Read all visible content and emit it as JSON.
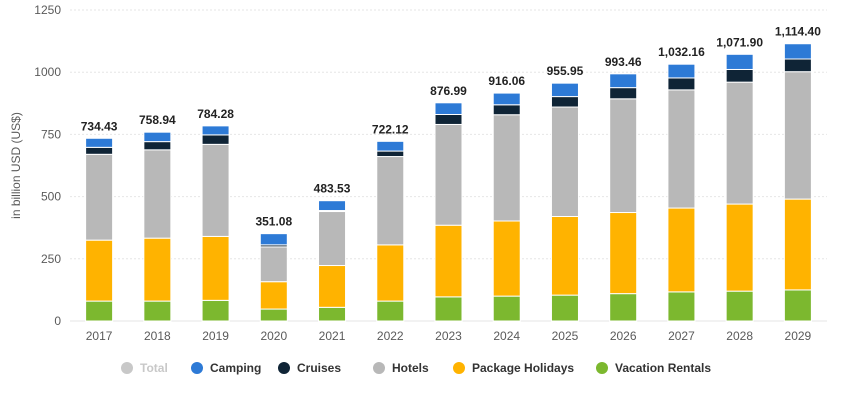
{
  "chart_data": {
    "type": "bar",
    "stacked": true,
    "ylabel": "in billion USD (US$)",
    "ylim": [
      0,
      1250
    ],
    "yticks": [
      "0",
      "250",
      "500",
      "750",
      "1000",
      "1250"
    ],
    "categories": [
      "2017",
      "2018",
      "2019",
      "2020",
      "2021",
      "2022",
      "2023",
      "2024",
      "2025",
      "2026",
      "2027",
      "2028",
      "2029"
    ],
    "totals": [
      734.43,
      758.94,
      784.28,
      351.08,
      483.53,
      722.12,
      876.99,
      916.06,
      955.95,
      993.46,
      1032.16,
      1071.9,
      1114.4
    ],
    "total_labels": [
      "734.43",
      "758.94",
      "784.28",
      "351.08",
      "483.53",
      "722.12",
      "876.99",
      "916.06",
      "955.95",
      "993.46",
      "1,032.16",
      "1,071.90",
      "1,114.40"
    ],
    "series": [
      {
        "name": "Vacation Rentals",
        "color": "#7cb82f",
        "values": [
          80,
          80,
          83,
          48,
          55,
          80,
          97,
          100,
          104,
          110,
          117,
          120,
          125
        ]
      },
      {
        "name": "Package Holidays",
        "color": "#ffb300",
        "values": [
          245,
          253,
          257,
          110,
          168,
          226,
          288,
          302,
          316,
          326,
          337,
          350,
          365
        ]
      },
      {
        "name": "Hotels",
        "color": "#b8b8b8",
        "values": [
          345,
          355,
          370,
          140,
          217,
          355,
          405,
          427,
          440,
          457,
          475,
          490,
          512
        ]
      },
      {
        "name": "Cruises",
        "color": "#0f2436",
        "values": [
          28,
          33,
          38,
          8,
          4,
          22,
          40,
          40,
          42,
          45,
          48,
          51,
          51
        ]
      },
      {
        "name": "Camping",
        "color": "#2d7ad6",
        "values": [
          36.43,
          37.94,
          36.28,
          45.08,
          39.53,
          39.12,
          46.99,
          47.06,
          53.95,
          55.46,
          55.16,
          60.9,
          61.4
        ]
      }
    ],
    "legend": {
      "placement": "bottom",
      "items": [
        {
          "name": "Total",
          "color": "#c8c8c8",
          "muted": true
        },
        {
          "name": "Camping",
          "color": "#2d7ad6"
        },
        {
          "name": "Cruises",
          "color": "#0f2436"
        },
        {
          "name": "Hotels",
          "color": "#b8b8b8"
        },
        {
          "name": "Package Holidays",
          "color": "#ffb300"
        },
        {
          "name": "Vacation Rentals",
          "color": "#7cb82f"
        }
      ]
    },
    "grid": true
  }
}
